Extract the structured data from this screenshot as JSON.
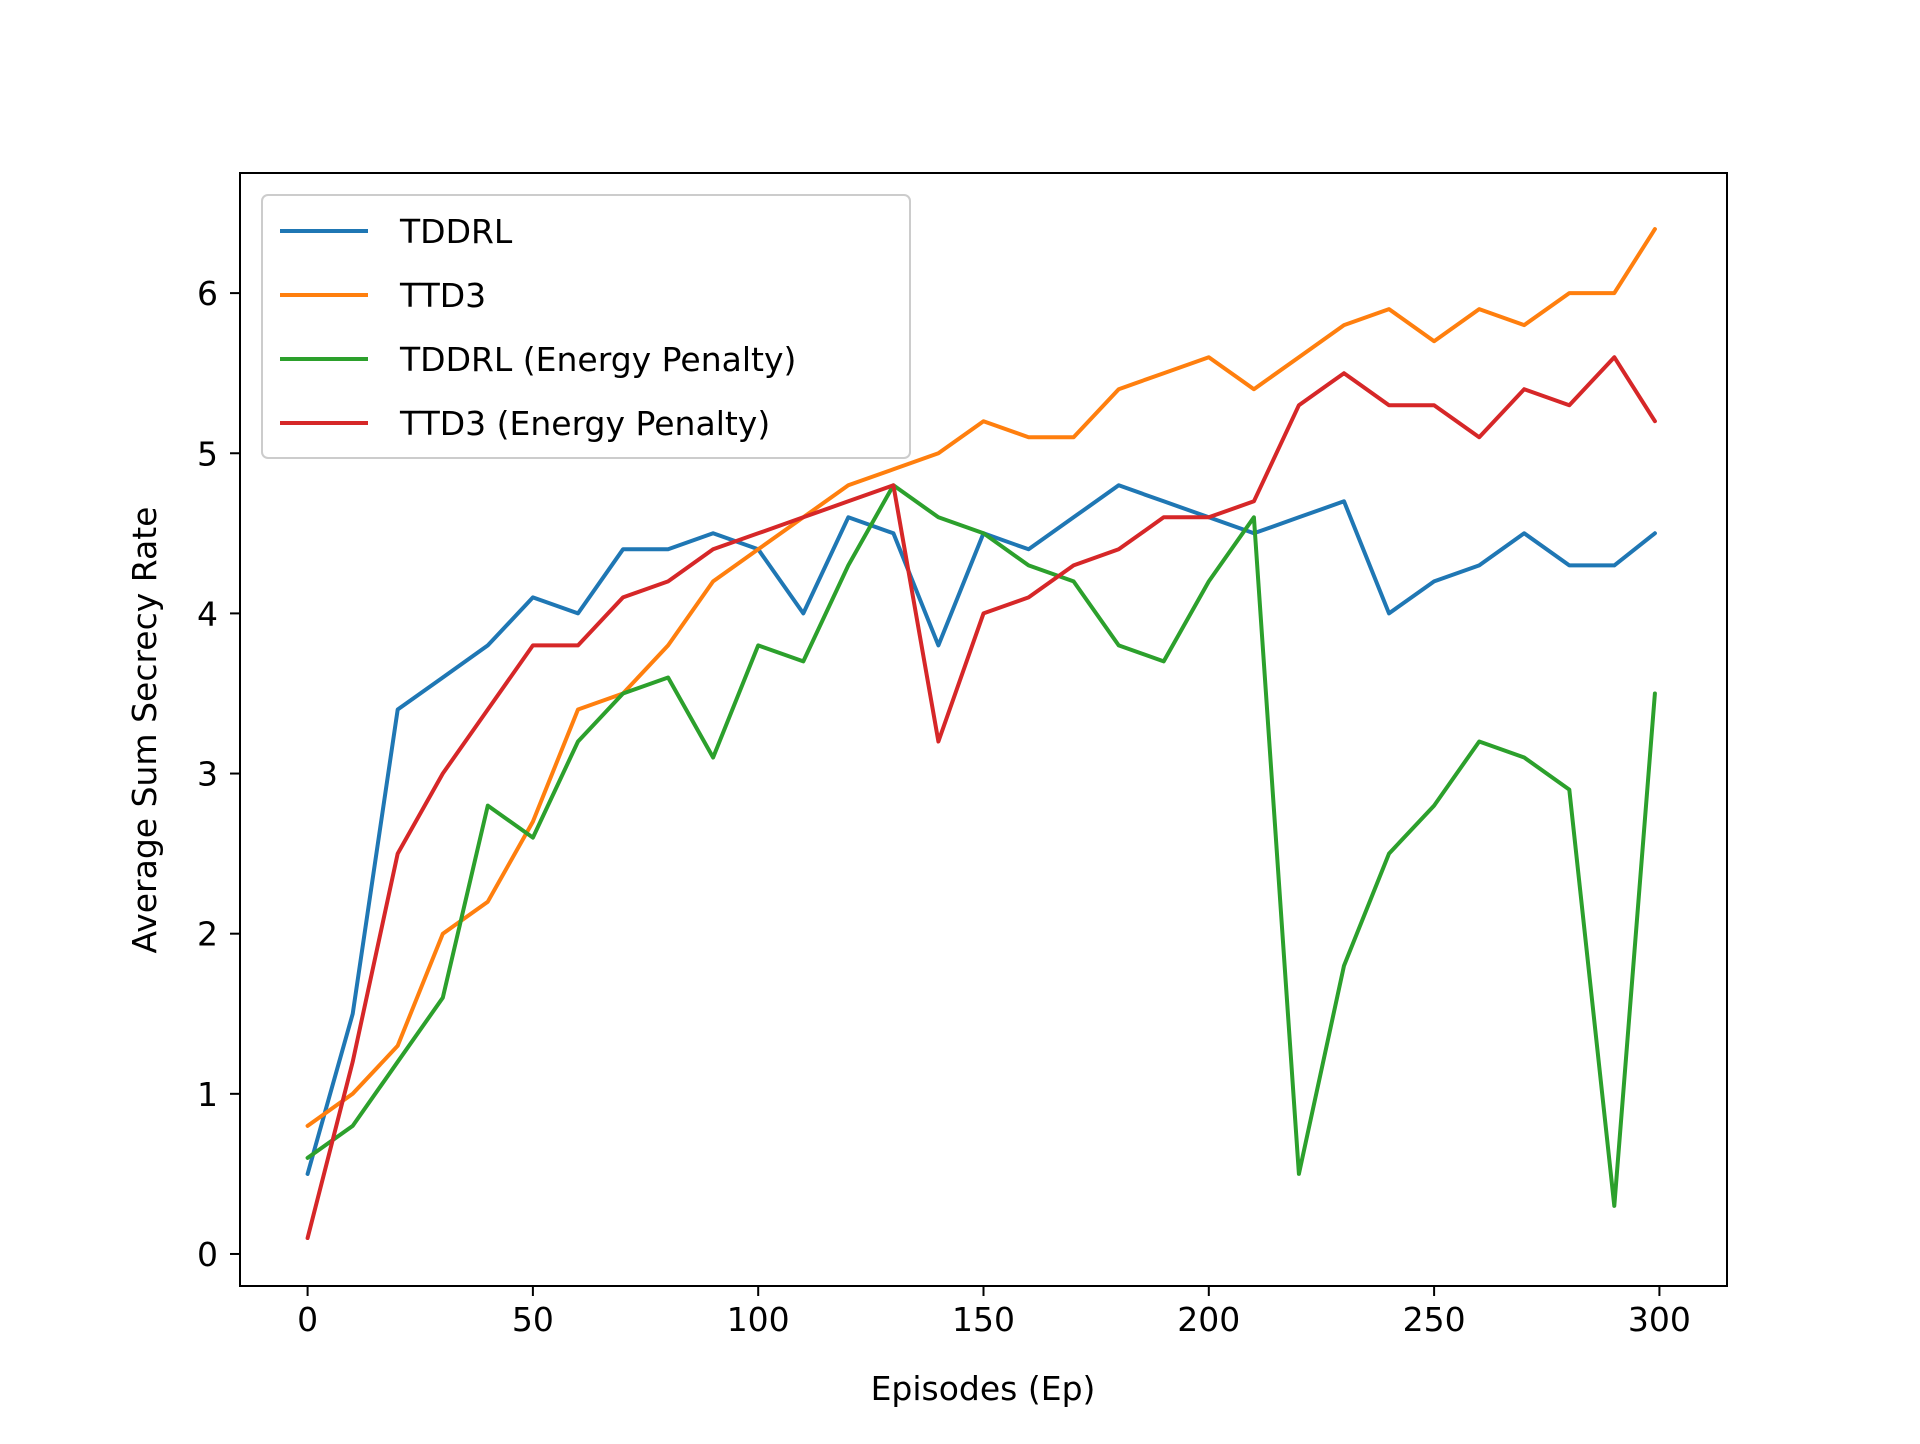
{
  "chart_data": {
    "type": "line",
    "title": "",
    "xlabel": "Episodes (Ep)",
    "ylabel": "Average Sum Secrecy Rate",
    "xlim": [
      -15,
      315
    ],
    "ylim": [
      -0.2,
      6.75
    ],
    "xticks": [
      0,
      50,
      100,
      150,
      200,
      250,
      300
    ],
    "xtick_labels": [
      "0",
      "50",
      "100",
      "150",
      "200",
      "250",
      "300"
    ],
    "yticks": [
      0,
      1,
      2,
      3,
      4,
      5,
      6
    ],
    "ytick_labels": [
      "0",
      "1",
      "2",
      "3",
      "4",
      "5",
      "6"
    ],
    "grid": false,
    "legend_position": "upper-left",
    "x_points": [
      0,
      10,
      20,
      30,
      40,
      50,
      60,
      70,
      80,
      90,
      100,
      110,
      120,
      130,
      140,
      150,
      160,
      170,
      180,
      190,
      200,
      210,
      220,
      230,
      240,
      250,
      260,
      270,
      280,
      290,
      299
    ],
    "series": [
      {
        "name": "TDDRL",
        "color": "#1f77b4",
        "values": [
          0.5,
          1.5,
          3.4,
          3.6,
          3.8,
          4.1,
          4.0,
          4.4,
          4.4,
          4.5,
          4.4,
          4.0,
          4.6,
          4.5,
          3.8,
          4.5,
          4.4,
          4.6,
          4.8,
          4.7,
          4.6,
          4.5,
          4.6,
          4.7,
          4.0,
          4.2,
          4.3,
          4.5,
          4.3,
          4.3,
          4.5
        ]
      },
      {
        "name": "TTD3",
        "color": "#ff7f0e",
        "values": [
          0.8,
          1.0,
          1.3,
          2.0,
          2.2,
          2.7,
          3.4,
          3.5,
          3.8,
          4.2,
          4.4,
          4.6,
          4.8,
          4.9,
          5.0,
          5.2,
          5.1,
          5.1,
          5.4,
          5.5,
          5.6,
          5.4,
          5.6,
          5.8,
          5.9,
          5.7,
          5.9,
          5.8,
          6.0,
          6.0,
          6.4
        ]
      },
      {
        "name": "TDDRL (Energy Penalty)",
        "color": "#2ca02c",
        "values": [
          0.6,
          0.8,
          1.2,
          1.6,
          2.8,
          2.6,
          3.2,
          3.5,
          3.6,
          3.1,
          3.8,
          3.7,
          4.3,
          4.8,
          4.6,
          4.5,
          4.3,
          4.2,
          3.8,
          3.7,
          4.2,
          4.6,
          0.5,
          1.8,
          2.5,
          2.8,
          3.2,
          3.1,
          2.9,
          0.3,
          3.5
        ]
      },
      {
        "name": "TTD3 (Energy Penalty)",
        "color": "#d62728",
        "values": [
          0.1,
          1.2,
          2.5,
          3.0,
          3.4,
          3.8,
          3.8,
          4.1,
          4.2,
          4.4,
          4.5,
          4.6,
          4.7,
          4.8,
          3.2,
          4.0,
          4.1,
          4.3,
          4.4,
          4.6,
          4.6,
          4.7,
          5.3,
          5.5,
          5.3,
          5.3,
          5.1,
          5.4,
          5.3,
          5.6,
          5.2
        ]
      }
    ]
  }
}
